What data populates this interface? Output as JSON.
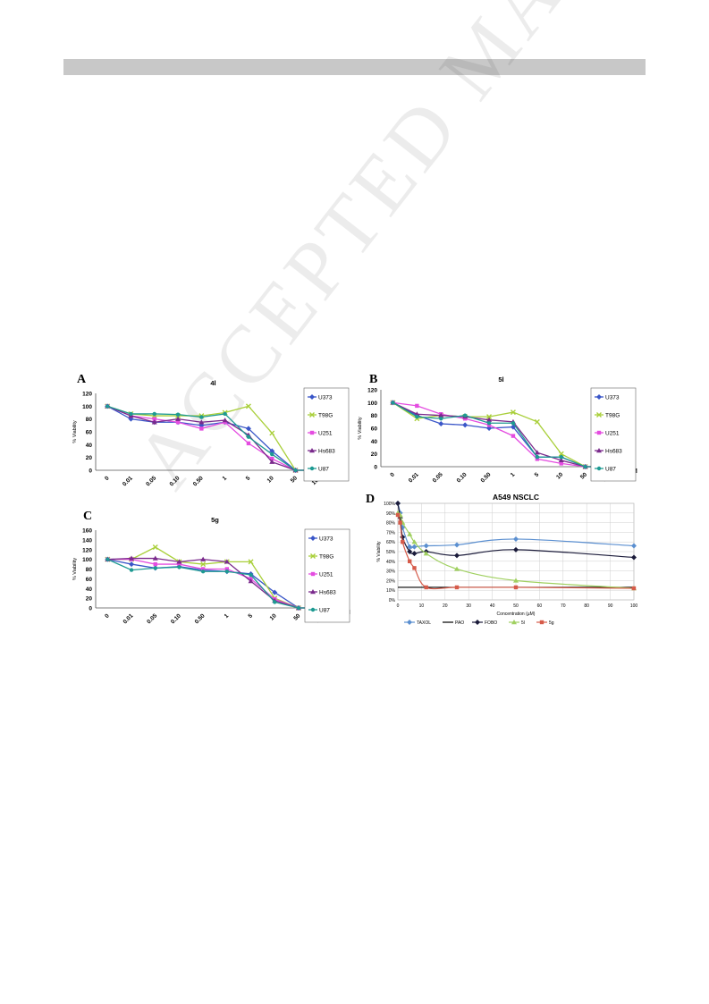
{
  "panels": {
    "a": {
      "letter": "A"
    },
    "b": {
      "letter": "B"
    },
    "c": {
      "letter": "C"
    },
    "d": {
      "letter": "D"
    }
  },
  "watermark": "ACCEPTED MANUSCRIPT",
  "chart_data": [
    {
      "type": "line",
      "title": "4l",
      "ylabel": "% Viability",
      "unit_label": "µM",
      "categories": [
        "0",
        "0.01",
        "0.05",
        "0.10",
        "0.50",
        "1",
        "5",
        "10",
        "50",
        "100"
      ],
      "ylim": [
        0,
        120
      ],
      "yticks": [
        0,
        20,
        40,
        60,
        80,
        100,
        120
      ],
      "legend": "right",
      "series": [
        {
          "name": "U373",
          "color": "#3a56c8",
          "values": [
            100,
            80,
            75,
            75,
            70,
            75,
            65,
            30,
            0,
            0
          ]
        },
        {
          "name": "T98G",
          "color": "#a9cf3a",
          "values": [
            100,
            88,
            85,
            85,
            85,
            90,
            100,
            58,
            0,
            0
          ]
        },
        {
          "name": "U251",
          "color": "#e44ce0",
          "values": [
            100,
            85,
            80,
            75,
            65,
            75,
            42,
            18,
            0,
            0
          ]
        },
        {
          "name": "Hs683",
          "color": "#7a2a8c",
          "values": [
            100,
            85,
            75,
            80,
            75,
            78,
            55,
            13,
            0,
            0
          ]
        },
        {
          "name": "U87",
          "color": "#1e9a92",
          "values": [
            100,
            88,
            88,
            87,
            83,
            88,
            52,
            25,
            0,
            0
          ]
        }
      ]
    },
    {
      "type": "line",
      "title": "5l",
      "ylabel": "% Viability",
      "unit_label": "µM",
      "categories": [
        "0",
        "0.01",
        "0.05",
        "0.10",
        "0.50",
        "1",
        "5",
        "10",
        "50",
        "100"
      ],
      "ylim": [
        0,
        120
      ],
      "yticks": [
        0,
        20,
        40,
        60,
        80,
        100,
        120
      ],
      "legend": "right",
      "series": [
        {
          "name": "U373",
          "color": "#3a56c8",
          "values": [
            100,
            80,
            67,
            65,
            60,
            62,
            15,
            15,
            0,
            0
          ]
        },
        {
          "name": "T98G",
          "color": "#a9cf3a",
          "values": [
            100,
            75,
            80,
            78,
            78,
            85,
            70,
            20,
            0,
            0
          ]
        },
        {
          "name": "U251",
          "color": "#e44ce0",
          "values": [
            100,
            95,
            82,
            75,
            65,
            48,
            12,
            5,
            0,
            0
          ]
        },
        {
          "name": "Hs683",
          "color": "#7a2a8c",
          "values": [
            100,
            82,
            80,
            78,
            73,
            70,
            22,
            10,
            0,
            0
          ]
        },
        {
          "name": "U87",
          "color": "#1e9a92",
          "values": [
            100,
            78,
            75,
            80,
            68,
            68,
            15,
            15,
            0,
            0
          ]
        }
      ]
    },
    {
      "type": "line",
      "title": "5g",
      "ylabel": "% Viability",
      "unit_label": "µM",
      "categories": [
        "0",
        "0.01",
        "0.05",
        "0.10",
        "0.50",
        "1",
        "5",
        "10",
        "50",
        "100"
      ],
      "ylim": [
        0,
        160
      ],
      "yticks": [
        0,
        20,
        40,
        60,
        80,
        100,
        120,
        140,
        160
      ],
      "legend": "right",
      "series": [
        {
          "name": "U373",
          "color": "#3a56c8",
          "values": [
            100,
            90,
            82,
            85,
            78,
            75,
            70,
            32,
            0,
            0
          ]
        },
        {
          "name": "T98G",
          "color": "#a9cf3a",
          "values": [
            100,
            100,
            125,
            95,
            90,
            95,
            95,
            20,
            0,
            0
          ]
        },
        {
          "name": "U251",
          "color": "#e44ce0",
          "values": [
            100,
            100,
            90,
            90,
            80,
            80,
            60,
            18,
            0,
            0
          ]
        },
        {
          "name": "Hs683",
          "color": "#7a2a8c",
          "values": [
            100,
            102,
            102,
            95,
            100,
            95,
            55,
            15,
            0,
            0
          ]
        },
        {
          "name": "U87",
          "color": "#1e9a92",
          "values": [
            100,
            78,
            82,
            84,
            75,
            75,
            68,
            12,
            0,
            0
          ]
        }
      ]
    },
    {
      "type": "line",
      "title": "A549 NSCLC",
      "xlabel": "Concentration (µM)",
      "ylabel": "% Viability",
      "xlim": [
        0,
        100
      ],
      "xticks": [
        0,
        10,
        20,
        30,
        40,
        50,
        60,
        70,
        80,
        90,
        100
      ],
      "ylim": [
        0,
        100
      ],
      "yticks": [
        "0%",
        "10%",
        "20%",
        "30%",
        "40%",
        "50%",
        "60%",
        "70%",
        "80%",
        "90%",
        "100%"
      ],
      "grid": true,
      "legend": "bottom",
      "series": [
        {
          "name": "TAXOL",
          "color": "#5b8fd0",
          "x": [
            0,
            1,
            2,
            5,
            7,
            12,
            25,
            50,
            100
          ],
          "y": [
            100,
            90,
            75,
            55,
            55,
            56,
            57,
            63,
            56
          ]
        },
        {
          "name": "PAO",
          "color": "#000000",
          "x": [
            0,
            100
          ],
          "y": [
            13,
            13
          ]
        },
        {
          "name": "FOBO",
          "color": "#1b1b3a",
          "x": [
            0,
            1,
            2,
            5,
            7,
            12,
            25,
            50,
            100
          ],
          "y": [
            100,
            85,
            65,
            50,
            48,
            50,
            46,
            52,
            44
          ]
        },
        {
          "name": "5l",
          "color": "#a0d060",
          "x": [
            0,
            1,
            2,
            5,
            7,
            12,
            25,
            50,
            100
          ],
          "y": [
            90,
            88,
            80,
            68,
            60,
            48,
            32,
            20,
            12
          ]
        },
        {
          "name": "5g",
          "color": "#d65b4a",
          "x": [
            0,
            1,
            2,
            5,
            7,
            12,
            25,
            50,
            100
          ],
          "y": [
            88,
            80,
            60,
            40,
            33,
            13,
            13,
            13,
            12
          ]
        }
      ]
    }
  ]
}
